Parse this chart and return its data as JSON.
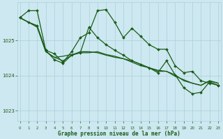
{
  "title": "Graphe pression niveau de la mer (hPa)",
  "bg_color": "#cde8f0",
  "grid_color": "#aacfdb",
  "line_color": "#1a5c1a",
  "tick_color": "#1a5c1a",
  "xlabel_color": "#1a5c1a",
  "x_labels": [
    "0",
    "1",
    "2",
    "3",
    "4",
    "5",
    "6",
    "7",
    "8",
    "9",
    "10",
    "11",
    "12",
    "13",
    "14",
    "15",
    "16",
    "17",
    "18",
    "19",
    "20",
    "21",
    "22",
    "23"
  ],
  "ylim": [
    1022.7,
    1026.1
  ],
  "yticks": [
    1023,
    1024,
    1025
  ],
  "series": [
    {
      "y": [
        1025.65,
        1025.85,
        1025.85,
        1024.72,
        1024.62,
        1024.38,
        1024.68,
        1025.08,
        1025.22,
        1025.85,
        1025.88,
        1025.52,
        1025.08,
        1025.35,
        1025.12,
        1024.88,
        1024.75,
        1024.75,
        1024.28,
        1024.08,
        1024.12,
        1023.85,
        1023.78,
        1023.72
      ],
      "marker": true,
      "lw": 0.9
    },
    {
      "y": [
        1025.65,
        1025.52,
        1025.42,
        1024.72,
        1024.45,
        1024.35,
        1024.58,
        1024.65,
        1025.38,
        1025.08,
        1024.88,
        1024.72,
        1024.58,
        1024.42,
        1024.32,
        1024.22,
        1024.08,
        1024.42,
        1024.02,
        1023.65,
        1023.48,
        1023.52,
        1023.82,
        1023.72
      ],
      "marker": true,
      "lw": 0.9
    },
    {
      "y": [
        1025.65,
        1025.52,
        1025.42,
        1024.68,
        1024.52,
        1024.55,
        1024.6,
        1024.65,
        1024.65,
        1024.68,
        1024.6,
        1024.55,
        1024.48,
        1024.42,
        1024.32,
        1024.22,
        1024.15,
        1024.12,
        1024.02,
        1023.85,
        1023.78,
        1023.72,
        1023.85,
        1023.78
      ],
      "marker": false,
      "lw": 0.9
    },
    {
      "y": [
        1025.65,
        1025.52,
        1025.38,
        1024.68,
        1024.52,
        1024.42,
        1024.58,
        1024.68,
        1024.68,
        1024.65,
        1024.58,
        1024.52,
        1024.48,
        1024.38,
        1024.28,
        1024.22,
        1024.12,
        1024.12,
        1023.98,
        1023.88,
        1023.78,
        1023.72,
        1023.85,
        1023.78
      ],
      "marker": false,
      "lw": 0.9
    }
  ],
  "marker": "D",
  "marker_size": 2.0,
  "figsize": [
    3.2,
    2.0
  ],
  "dpi": 100
}
